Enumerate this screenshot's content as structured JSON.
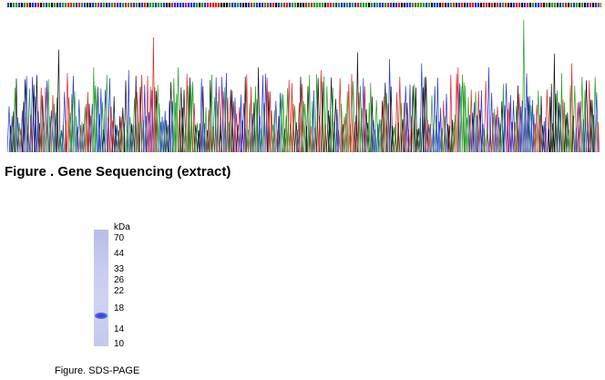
{
  "sequencing": {
    "caption": "Figure . Gene Sequencing (extract)",
    "trace_colors": {
      "A": "#22a022",
      "C": "#2233dd",
      "G": "#111111",
      "T": "#dd2222"
    }
  },
  "gel": {
    "unit_label": "kDa",
    "markers": [
      "70",
      "44",
      "33",
      "26",
      "22",
      "18",
      "14",
      "10"
    ],
    "caption": "Figure. SDS-PAGE"
  }
}
